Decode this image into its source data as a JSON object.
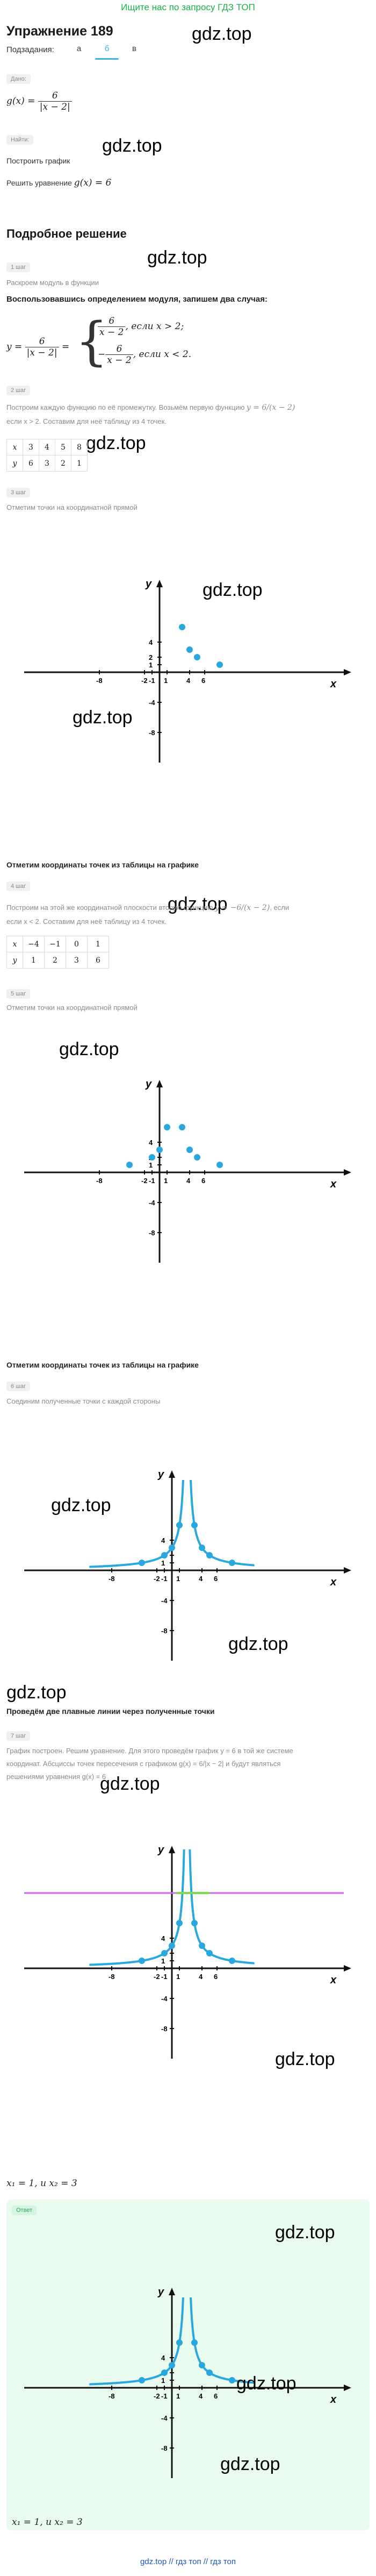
{
  "banner": "Ищите нас по запросу ГДЗ ТОП",
  "title": "Упражнение 189",
  "subtasks_label": "Подзадания:",
  "tabs": [
    "а",
    "б",
    "в"
  ],
  "watermark": "gdz.top",
  "given_label": "Дано:",
  "given_formula_lhs": "g(x) =",
  "given_num": "6",
  "given_den": "|x − 2|",
  "find_label": "Найти:",
  "find1": "Построить график",
  "find2_text": "Решить уравнение ",
  "find2_math": "g(x) = 6",
  "solution_title": "Подробное решение",
  "steps": {
    "s1": "1 шаг",
    "s2": "2 шаг",
    "s3": "3 шаг",
    "s4": "4 шаг",
    "s5": "5 шаг",
    "s6": "6 шаг",
    "s7": "7 шаг"
  },
  "step1_small": "Раскроем модуль в функции",
  "step1_text": "Воспользовавшись определением модуля, запишем два случая:",
  "case_lhs": "y =",
  "case_num": "6",
  "case_den": "|x − 2|",
  "case1_num": "6",
  "case1_den": "x − 2",
  "case1_cond": ", если x > 2;",
  "case2_num": "6",
  "case2_den": "x − 2",
  "case2_minus": "−",
  "case2_cond": ", если x < 2.",
  "step2_small_a": "Построим каждую функцию по её промежутку. Возьмём первую функцию ",
  "step2_math": "y = 6/(x − 2)",
  "step2_small_b": "если x > 2. Составим для неё таблицу из 4 точек.",
  "table1": {
    "x": [
      "x",
      "3",
      "4",
      "5",
      "8"
    ],
    "y": [
      "y",
      "6",
      "3",
      "2",
      "1"
    ]
  },
  "step3_small": "Отметим точки на координатной прямой",
  "mark_caption": "Отметим координаты точек из таблицы на графике",
  "step4_small_a": "Построим на этой же координатной плоскости вторую функцию ",
  "step4_math": "y = −6/(x − 2)",
  "step4_small_a2": ", если",
  "step4_small_b": "если x < 2. Составим для неё таблицу из 4 точек.",
  "table2": {
    "x": [
      "x",
      "−4",
      "−1",
      "0",
      "1"
    ],
    "y": [
      "y",
      "1",
      "2",
      "3",
      "6"
    ]
  },
  "step5_small": "Отметим точки на координатной прямой",
  "step6_small": "Соединим полученные точки с каждой стороны",
  "draw_caption": "Проведём две плавные линии через полученные точки",
  "step7_small_a": "График построен. Решим уравнение. Для этого проведём график y = 6 в той же системе",
  "step7_small_b": "координат. Абсциссы точек пересечения с графиком g(x) = 6/|x − 2| и будут являться",
  "step7_small_c": "решениями уравнения g(x) = 6",
  "result": "x₁ = 1, и x₂ = 3",
  "answer_label": "Ответ",
  "answer": "x₁ = 1, и x₂ = 3",
  "footer": "gdz.top  //  гдз топ  //  гдз топ",
  "axis": {
    "x": "x",
    "y": "y",
    "ticks_x": [
      "-8",
      "-2",
      "-1",
      "1",
      "4",
      "6"
    ],
    "ticks_y": [
      "4",
      "2",
      "1",
      "-4",
      "-8"
    ]
  },
  "colors": {
    "accent": "#3db2e8",
    "point": "#29a8e0",
    "green": "#17b34a",
    "purple": "#cc66ee",
    "answer_bg": "#e9fbef"
  }
}
